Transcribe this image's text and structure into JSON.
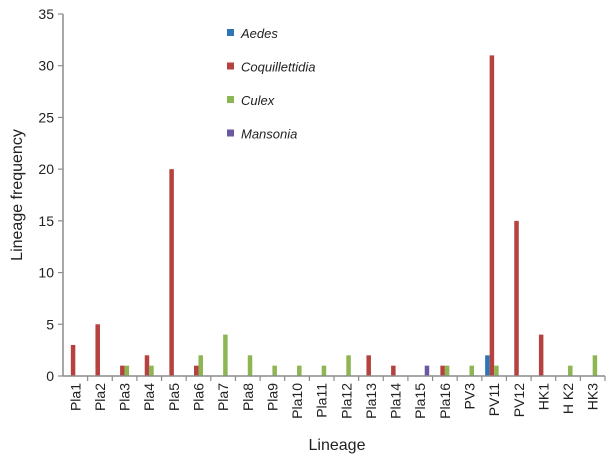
{
  "chart_data": {
    "type": "bar",
    "title": "",
    "xlabel": "Lineage",
    "ylabel": "Lineage frequency",
    "ylim": [
      0,
      35
    ],
    "yticks": [
      0,
      5,
      10,
      15,
      20,
      25,
      30,
      35
    ],
    "grid": false,
    "legend_position": "top-center",
    "categories": [
      "Pla1",
      "Pla2",
      "Pla3",
      "Pla4",
      "Pla5",
      "Pla6",
      "Pla7",
      "Pla8",
      "Pla9",
      "Pla10",
      "Pla11",
      "Pla12",
      "Pla13",
      "Pla14",
      "Pla15",
      "Pla16",
      "PV3",
      "PV11",
      "PV12",
      "HK1",
      "H K2",
      "HK3"
    ],
    "series": [
      {
        "name": "Aedes",
        "color": "#2e75b6",
        "values": [
          0,
          0,
          0,
          0,
          0,
          0,
          0,
          0,
          0,
          0,
          0,
          0,
          0,
          0,
          0,
          0,
          0,
          2,
          0,
          0,
          0,
          0
        ]
      },
      {
        "name": "Coquillettidia",
        "color": "#b5423e",
        "values": [
          3,
          5,
          1,
          2,
          20,
          1,
          0,
          0,
          0,
          0,
          0,
          0,
          2,
          1,
          0,
          1,
          0,
          31,
          15,
          4,
          0,
          0
        ]
      },
      {
        "name": "Culex",
        "color": "#8db653",
        "values": [
          0,
          0,
          1,
          1,
          0,
          2,
          4,
          2,
          1,
          1,
          1,
          2,
          0,
          0,
          0,
          1,
          1,
          1,
          0,
          0,
          1,
          2
        ]
      },
      {
        "name": "Mansonia",
        "color": "#6a58a0",
        "values": [
          0,
          0,
          0,
          0,
          0,
          0,
          0,
          0,
          0,
          0,
          0,
          0,
          0,
          0,
          1,
          0,
          0,
          0,
          0,
          0,
          0,
          0
        ]
      }
    ]
  }
}
